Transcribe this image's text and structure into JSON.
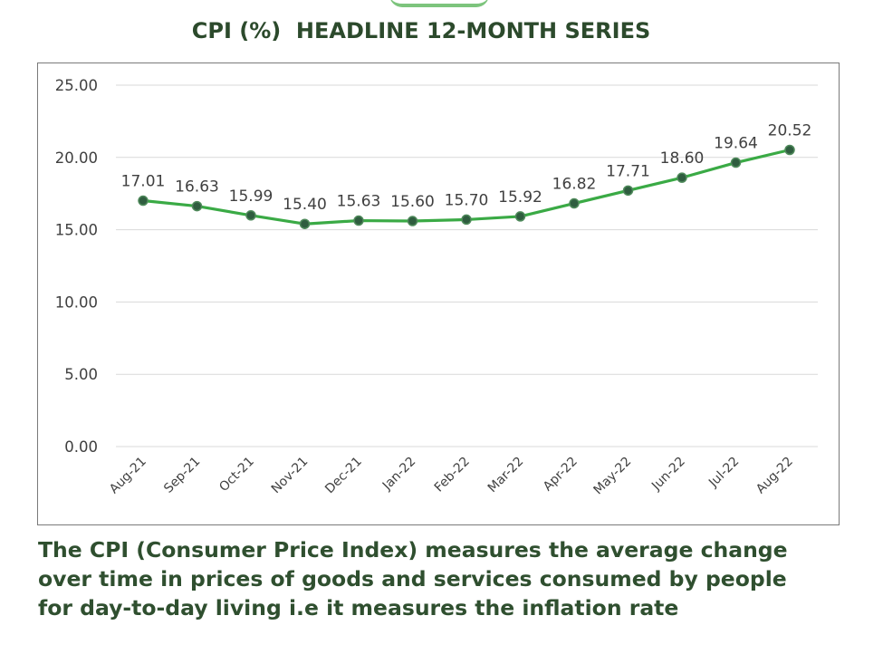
{
  "title": "CPI (%)  HEADLINE 12-MONTH SERIES",
  "caption": {
    "lines": [
      "The CPI (Consumer Price Index) measures the average change",
      "over time in prices of goods and services consumed by people",
      "for day-to-day living i.e it measures the inflation rate"
    ]
  },
  "colors": {
    "line": "#3aaa45",
    "marker_fill": "#2f5d3f",
    "marker_stroke": "#4f8a5b",
    "grid": "#d9d9d9",
    "title": "#2c4a2c",
    "caption": "#2f4f2f"
  },
  "chart_data": {
    "type": "line",
    "title": "CPI (%)  HEADLINE 12-MONTH SERIES",
    "xlabel": "",
    "ylabel": "",
    "categories": [
      "Aug-21",
      "Sep-21",
      "Oct-21",
      "Nov-21",
      "Dec-21",
      "Jan-22",
      "Feb-22",
      "Mar-22",
      "Apr-22",
      "May-22",
      "Jun-22",
      "Jul-22",
      "Aug-22"
    ],
    "series": [
      {
        "name": "CPI (%)",
        "values": [
          17.01,
          16.63,
          15.99,
          15.4,
          15.63,
          15.6,
          15.7,
          15.92,
          16.82,
          17.71,
          18.6,
          19.64,
          20.52
        ],
        "labels": [
          "17.01",
          "16.63",
          "15.99",
          "15.40",
          "15.63",
          "15.60",
          "15.70",
          "15.92",
          "16.82",
          "17.71",
          "18.60",
          "19.64",
          "20.52"
        ]
      }
    ],
    "ylim": [
      0,
      25
    ],
    "yticks": [
      "0.00",
      "5.00",
      "10.00",
      "15.00",
      "20.00",
      "25.00"
    ],
    "ytick_values": [
      0,
      5,
      10,
      15,
      20,
      25
    ],
    "grid": true,
    "legend": "none"
  }
}
